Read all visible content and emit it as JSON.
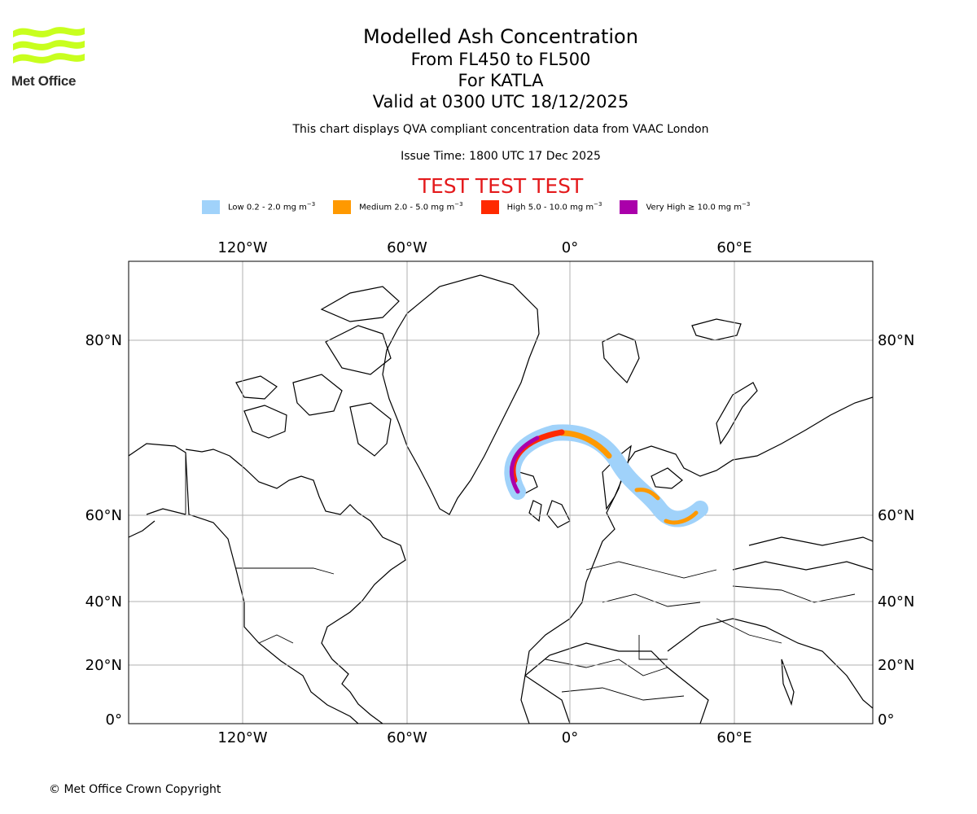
{
  "logo": {
    "text": "Met Office",
    "color": "#c8ff1e"
  },
  "header": {
    "title": "Modelled Ash Concentration",
    "level": "From FL450 to FL500",
    "volcano": "For KATLA",
    "valid": "Valid at 0300 UTC 18/12/2025",
    "note": "This chart displays QVA compliant concentration data from VAAC London",
    "issue": "Issue Time: 1800 UTC 17 Dec 2025",
    "test_banner": "TEST TEST TEST"
  },
  "legend": [
    {
      "label": "Low 0.2 - 2.0 mg m",
      "color": "#a0d2fa"
    },
    {
      "label": "Medium 2.0 - 5.0 mg m",
      "color": "#ff9900"
    },
    {
      "label": "High 5.0 - 10.0 mg m",
      "color": "#ff2a00"
    },
    {
      "label": "Very High ≥ 10.0 mg m",
      "color": "#aa00aa"
    }
  ],
  "legend_unit_exponent": "−3",
  "axes": {
    "lon_ticks": [
      "120°W",
      "60°W",
      "0°",
      "60°E"
    ],
    "lat_ticks": [
      "80°N",
      "60°N",
      "40°N",
      "20°N",
      "0°"
    ]
  },
  "footer": {
    "copyright": "© Met Office Crown Copyright"
  }
}
